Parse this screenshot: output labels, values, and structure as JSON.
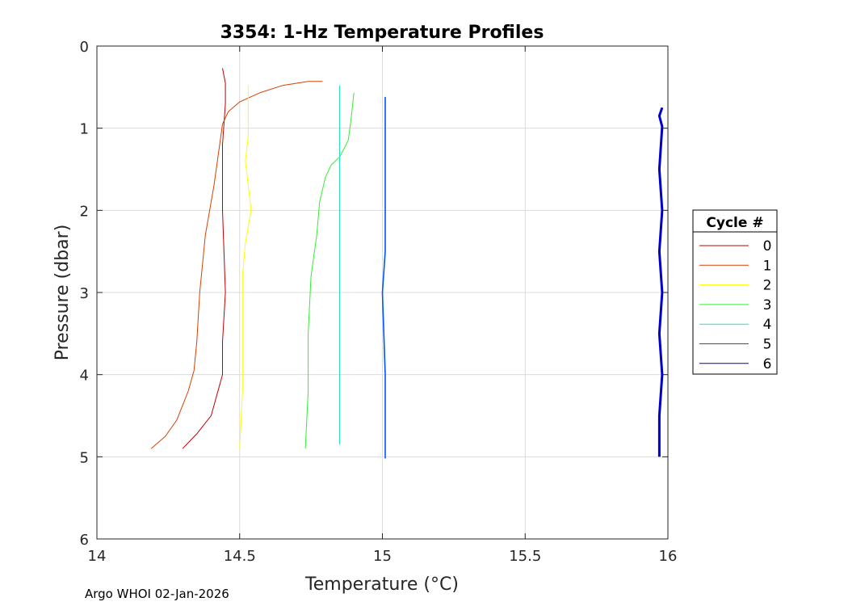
{
  "chart_data": {
    "type": "line",
    "title": "3354: 1-Hz Temperature Profiles",
    "xlabel": "Temperature (°C)",
    "ylabel": "Pressure (dbar)",
    "xlim": [
      14,
      16
    ],
    "ylim": [
      0,
      6
    ],
    "y_reversed": true,
    "grid": true,
    "x_ticks": [
      "14",
      "14.5",
      "15",
      "15.5",
      "16"
    ],
    "y_ticks": [
      "0",
      "1",
      "2",
      "3",
      "4",
      "5",
      "6"
    ],
    "legend": {
      "title": "Cycle #",
      "placement": "outside-right"
    },
    "series": [
      {
        "name": "0",
        "color": "#c00000",
        "points": [
          [
            14.44,
            0.27
          ],
          [
            14.45,
            0.45
          ],
          [
            14.45,
            0.7
          ],
          [
            14.44,
            1.2
          ],
          [
            14.44,
            2.0
          ],
          [
            14.45,
            3.0
          ],
          [
            14.44,
            3.6
          ],
          [
            14.44,
            4.0
          ],
          [
            14.4,
            4.5
          ],
          [
            14.35,
            4.72
          ],
          [
            14.3,
            4.9
          ]
        ]
      },
      {
        "name": "1",
        "color": "#d84000",
        "points": [
          [
            14.79,
            0.43
          ],
          [
            14.74,
            0.43
          ],
          [
            14.65,
            0.48
          ],
          [
            14.57,
            0.57
          ],
          [
            14.5,
            0.68
          ],
          [
            14.46,
            0.8
          ],
          [
            14.44,
            0.95
          ],
          [
            14.43,
            1.2
          ],
          [
            14.41,
            1.7
          ],
          [
            14.38,
            2.3
          ],
          [
            14.36,
            3.0
          ],
          [
            14.35,
            3.6
          ],
          [
            14.34,
            3.95
          ],
          [
            14.32,
            4.2
          ],
          [
            14.28,
            4.55
          ],
          [
            14.24,
            4.75
          ],
          [
            14.19,
            4.9
          ]
        ]
      },
      {
        "name": "2",
        "color": "#ffff00",
        "points": [
          [
            14.53,
            0.48
          ],
          [
            14.53,
            0.8
          ],
          [
            14.53,
            1.1
          ],
          [
            14.52,
            1.4
          ],
          [
            14.53,
            1.7
          ],
          [
            14.54,
            2.0
          ],
          [
            14.52,
            2.4
          ],
          [
            14.51,
            2.8
          ],
          [
            14.51,
            3.5
          ],
          [
            14.51,
            4.2
          ],
          [
            14.5,
            4.9
          ]
        ]
      },
      {
        "name": "3",
        "color": "#33ee33",
        "points": [
          [
            14.9,
            0.57
          ],
          [
            14.89,
            0.9
          ],
          [
            14.88,
            1.15
          ],
          [
            14.85,
            1.35
          ],
          [
            14.82,
            1.45
          ],
          [
            14.8,
            1.6
          ],
          [
            14.79,
            1.75
          ],
          [
            14.78,
            1.9
          ],
          [
            14.77,
            2.3
          ],
          [
            14.75,
            2.8
          ],
          [
            14.74,
            3.5
          ],
          [
            14.74,
            4.2
          ],
          [
            14.73,
            4.9
          ]
        ]
      },
      {
        "name": "4",
        "color": "#22e0c0",
        "points": [
          [
            14.85,
            0.48
          ],
          [
            14.85,
            1.0
          ],
          [
            14.85,
            2.0
          ],
          [
            14.85,
            3.0
          ],
          [
            14.85,
            3.6
          ],
          [
            14.85,
            4.2
          ],
          [
            14.85,
            4.85
          ]
        ]
      },
      {
        "name": "5",
        "color": "#0055ff",
        "points": [
          [
            15.01,
            0.62
          ],
          [
            15.01,
            1.5
          ],
          [
            15.01,
            2.5
          ],
          [
            15.0,
            3.0
          ],
          [
            15.01,
            4.0
          ],
          [
            15.01,
            5.02
          ]
        ]
      },
      {
        "name": "6",
        "color": "#0000cc",
        "points": [
          [
            15.98,
            0.75
          ],
          [
            15.97,
            0.85
          ],
          [
            15.98,
            0.98
          ],
          [
            15.97,
            1.5
          ],
          [
            15.98,
            2.0
          ],
          [
            15.97,
            2.5
          ],
          [
            15.98,
            3.0
          ],
          [
            15.97,
            3.5
          ],
          [
            15.98,
            4.0
          ],
          [
            15.97,
            4.5
          ],
          [
            15.97,
            5.0
          ]
        ]
      }
    ]
  },
  "footer": {
    "text": "Argo WHOI 02-Jan-2026"
  }
}
